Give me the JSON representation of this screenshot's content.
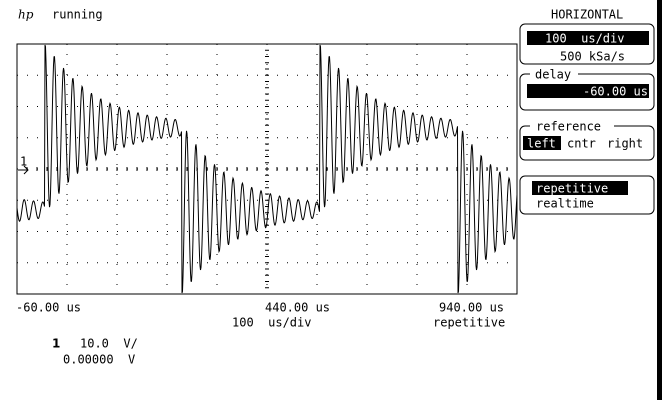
{
  "header": {
    "logo": "hp",
    "status": "running"
  },
  "horizontal": {
    "title": "HORIZONTAL",
    "scale": "100  us/div",
    "sample_rate": "500 kSa/s",
    "delay_label": "delay",
    "delay": "-60.00 us",
    "reference_label": "reference",
    "reference_options": [
      "left",
      "cntr",
      "right"
    ],
    "mode_options": [
      "repetitive",
      "realtime"
    ]
  },
  "timebase": {
    "left": "-60.00 us",
    "center": "440.00 us",
    "right": "940.00 us",
    "scale": "100  us/div",
    "mode": "repetitive"
  },
  "channel": {
    "number": "1",
    "scale": "10.0  V/",
    "offset": "0.00000  V"
  },
  "ground_marker": "1"
}
